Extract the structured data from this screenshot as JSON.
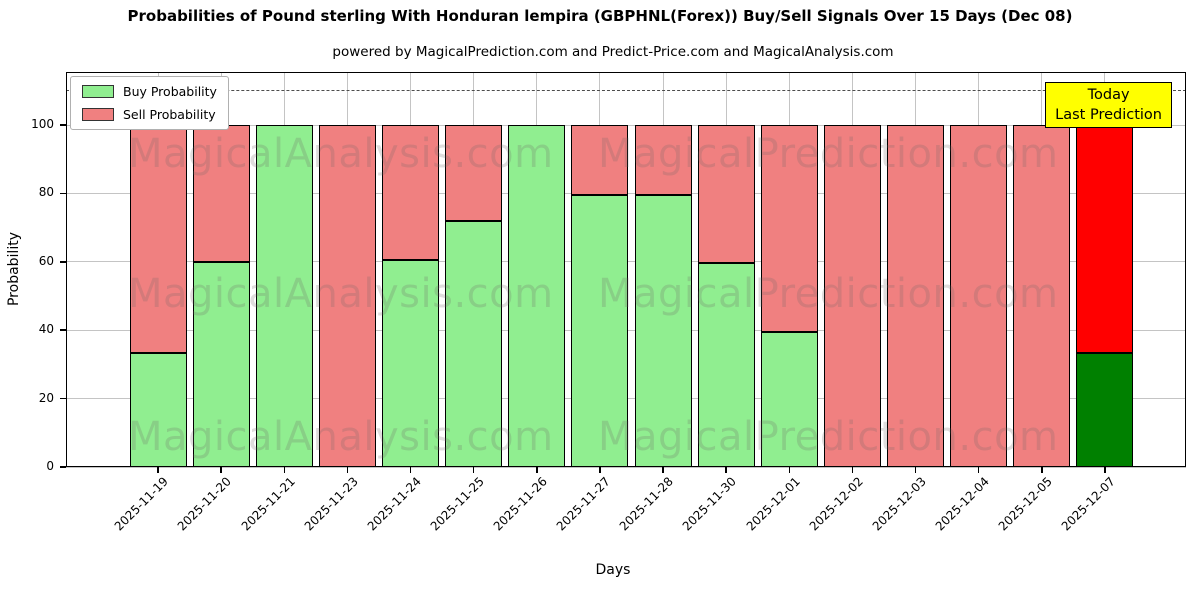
{
  "chart_data": {
    "type": "bar",
    "stacked": true,
    "title": "Probabilities of Pound sterling With Honduran lempira (GBPHNL(Forex)) Buy/Sell Signals Over 15 Days (Dec 08)",
    "subtitle": "powered by MagicalPrediction.com and Predict-Price.com and MagicalAnalysis.com",
    "xlabel": "Days",
    "ylabel": "Probability",
    "ylim": [
      0,
      115.5
    ],
    "yticks": [
      0,
      20,
      40,
      60,
      80,
      100
    ],
    "dashed_line_y": 110,
    "grid": true,
    "legend_position": "upper-left",
    "categories": [
      "2025-11-19",
      "2025-11-20",
      "2025-11-21",
      "2025-11-23",
      "2025-11-24",
      "2025-11-25",
      "2025-11-26",
      "2025-11-27",
      "2025-11-28",
      "2025-11-30",
      "2025-12-01",
      "2025-12-02",
      "2025-12-03",
      "2025-12-04",
      "2025-12-05",
      "2025-12-07"
    ],
    "series": [
      {
        "name": "Buy Probability",
        "color": "#90ee90",
        "values": [
          33.3,
          60,
          100,
          0,
          60.5,
          72,
          100,
          79.5,
          79.5,
          59.6,
          39.5,
          0,
          0,
          0,
          0,
          33.3
        ]
      },
      {
        "name": "Sell Probability",
        "color": "#f08080",
        "values": [
          66.7,
          40,
          0,
          100,
          39.5,
          28,
          0,
          20.5,
          20.5,
          40.4,
          60.5,
          100,
          100,
          100,
          100,
          66.7
        ]
      }
    ],
    "highlight": {
      "index": 15,
      "buy_color": "#008000",
      "sell_color": "#ff0000"
    },
    "edge_color": "#000000"
  },
  "annotation": {
    "line1": "Today",
    "line2": "Last Prediction",
    "bg_color": "#ffff00"
  },
  "watermarks": {
    "left_text": "MagicalAnalysis.com",
    "right_text": "MagicalPrediction.com"
  }
}
